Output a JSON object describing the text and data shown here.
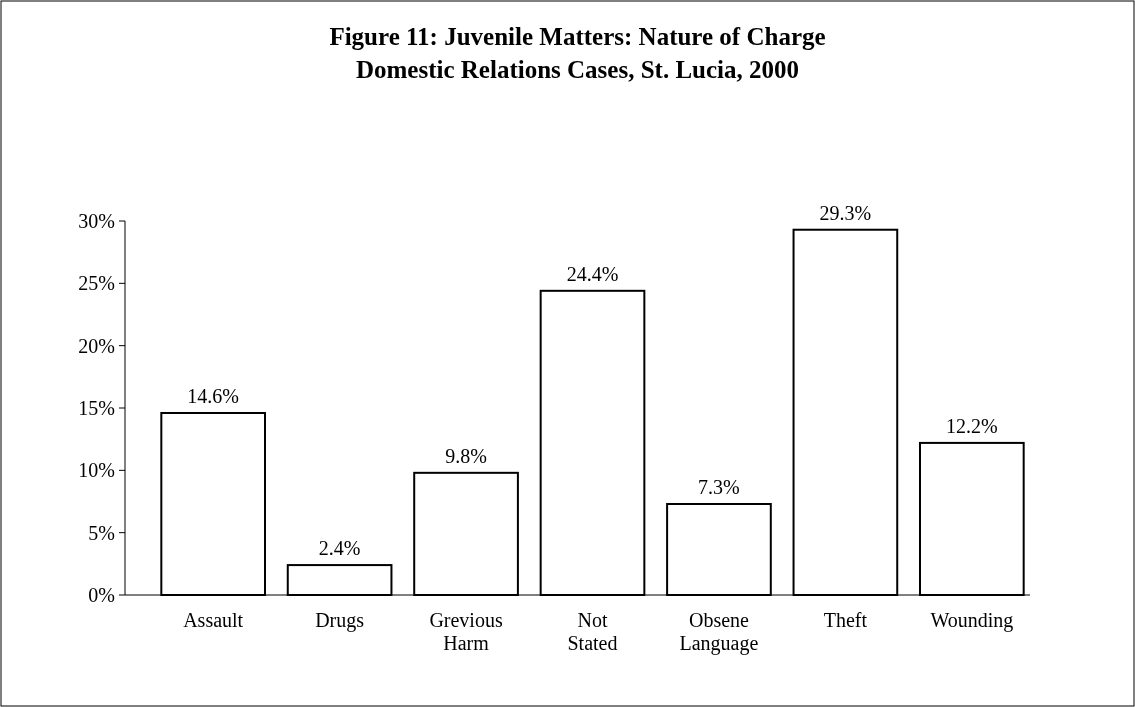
{
  "chart_data": {
    "type": "bar",
    "title": "Figure 11: Juvenile Matters: Nature of Charge\nDomestic Relations Cases, St. Lucia, 2000",
    "categories": [
      "Assault",
      "Drugs",
      "Grevious Harm",
      "Not Stated",
      "Obsene Language",
      "Theft",
      "Wounding"
    ],
    "values": [
      14.6,
      2.4,
      9.8,
      24.4,
      7.3,
      29.3,
      12.2
    ],
    "value_labels": [
      "14.6%",
      "2.4%",
      "9.8%",
      "24.4%",
      "7.3%",
      "29.3%",
      "12.2%"
    ],
    "color": "#ffffff",
    "ylim": [
      0,
      30
    ],
    "yticks": [
      {
        "value": 0,
        "label": "0%"
      },
      {
        "value": 5,
        "label": "5%"
      },
      {
        "value": 10,
        "label": "10%"
      },
      {
        "value": 15,
        "label": "15%"
      },
      {
        "value": 20,
        "label": "20%"
      },
      {
        "value": 25,
        "label": "25%"
      },
      {
        "value": 30,
        "label": "30%"
      }
    ],
    "grid": false
  }
}
